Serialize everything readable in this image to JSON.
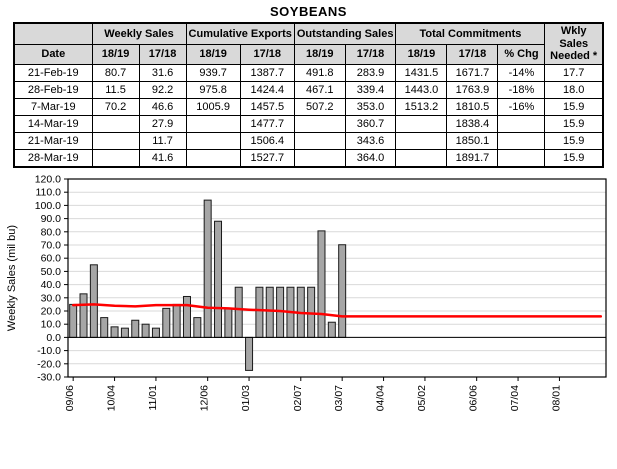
{
  "title": "SOYBEANS",
  "table": {
    "group_headers": [
      {
        "label": "",
        "span": 1
      },
      {
        "label": "Weekly Sales",
        "span": 2
      },
      {
        "label": "Cumulative Exports",
        "span": 2
      },
      {
        "label": "Outstanding Sales",
        "span": 2
      },
      {
        "label": "Total Commitments",
        "span": 3
      },
      {
        "label": "Wkly Sales Needed *",
        "span": 1,
        "rowspan": 2
      }
    ],
    "sub_headers": [
      "Date",
      "18/19",
      "17/18",
      "18/19",
      "17/18",
      "18/19",
      "17/18",
      "18/19",
      "17/18",
      "% Chg"
    ],
    "rows": [
      [
        "21-Feb-19",
        "80.7",
        "31.6",
        "939.7",
        "1387.7",
        "491.8",
        "283.9",
        "1431.5",
        "1671.7",
        "-14%",
        "17.7"
      ],
      [
        "28-Feb-19",
        "11.5",
        "92.2",
        "975.8",
        "1424.4",
        "467.1",
        "339.4",
        "1443.0",
        "1763.9",
        "-18%",
        "18.0"
      ],
      [
        "7-Mar-19",
        "70.2",
        "46.6",
        "1005.9",
        "1457.5",
        "507.2",
        "353.0",
        "1513.2",
        "1810.5",
        "-16%",
        "15.9"
      ],
      [
        "14-Mar-19",
        "",
        "27.9",
        "",
        "1477.7",
        "",
        "360.7",
        "",
        "1838.4",
        "",
        "15.9"
      ],
      [
        "21-Mar-19",
        "",
        "11.7",
        "",
        "1506.4",
        "",
        "343.6",
        "",
        "1850.1",
        "",
        "15.9"
      ],
      [
        "28-Mar-19",
        "",
        "41.6",
        "",
        "1527.7",
        "",
        "364.0",
        "",
        "1891.7",
        "",
        "15.9"
      ]
    ]
  },
  "chart_data": {
    "type": "bar",
    "title": "",
    "xlabel": "",
    "ylabel": "Weekly Sales (mil bu)",
    "ylim": [
      -30,
      120
    ],
    "ytick_step": 10,
    "grid": true,
    "legend": "none",
    "total_weeks": 52,
    "x_ticks": [
      {
        "label": "09/06",
        "week": 0
      },
      {
        "label": "10/04",
        "week": 4
      },
      {
        "label": "11/01",
        "week": 8
      },
      {
        "label": "12/06",
        "week": 13
      },
      {
        "label": "01/03",
        "week": 17
      },
      {
        "label": "02/07",
        "week": 22
      },
      {
        "label": "03/07",
        "week": 26
      },
      {
        "label": "04/04",
        "week": 30
      },
      {
        "label": "05/02",
        "week": 34
      },
      {
        "label": "06/06",
        "week": 39
      },
      {
        "label": "07/04",
        "week": 43
      },
      {
        "label": "08/01",
        "week": 47
      }
    ],
    "series": [
      {
        "name": "Weekly Sales (18/19)",
        "type": "bar",
        "dates": [
          "09/06",
          "09/13",
          "09/20",
          "09/27",
          "10/04",
          "10/11",
          "10/18",
          "10/25",
          "11/01",
          "11/08",
          "11/15",
          "11/22",
          "11/29",
          "12/06",
          "12/13",
          "12/20",
          "12/27",
          "01/03",
          "01/10",
          "01/17",
          "01/24",
          "01/31",
          "02/07",
          "02/14",
          "02/21",
          "02/28",
          "03/07"
        ],
        "weeks": [
          0,
          1,
          2,
          3,
          4,
          5,
          6,
          7,
          8,
          9,
          10,
          11,
          12,
          13,
          14,
          15,
          16,
          17,
          18,
          19,
          20,
          21,
          22,
          23,
          24,
          25,
          26
        ],
        "values": [
          25.0,
          33.0,
          55.0,
          15.0,
          8.0,
          7.0,
          13.0,
          10.0,
          7.0,
          22.0,
          25.0,
          31.0,
          15.0,
          104.0,
          88.0,
          22.0,
          38.0,
          -25.0,
          38.0,
          38.0,
          38.0,
          38.0,
          38.0,
          38.0,
          80.7,
          11.5,
          70.2
        ]
      },
      {
        "name": "Wkly Sales Needed",
        "type": "line",
        "points": [
          [
            0,
            24.5
          ],
          [
            2,
            25.0
          ],
          [
            4,
            24.0
          ],
          [
            6,
            23.5
          ],
          [
            8,
            24.5
          ],
          [
            11,
            24.5
          ],
          [
            13,
            22.5
          ],
          [
            15,
            22.0
          ],
          [
            17,
            21.0
          ],
          [
            20,
            20.0
          ],
          [
            22,
            18.5
          ],
          [
            24,
            17.7
          ],
          [
            26,
            15.9
          ],
          [
            51,
            15.9
          ]
        ]
      }
    ],
    "bar_color": "#a6a6a6",
    "bar_border": "#1a1a1a",
    "line_color": "#ff0000",
    "grid_color": "#d9d9d9",
    "axis_color": "#000000"
  }
}
